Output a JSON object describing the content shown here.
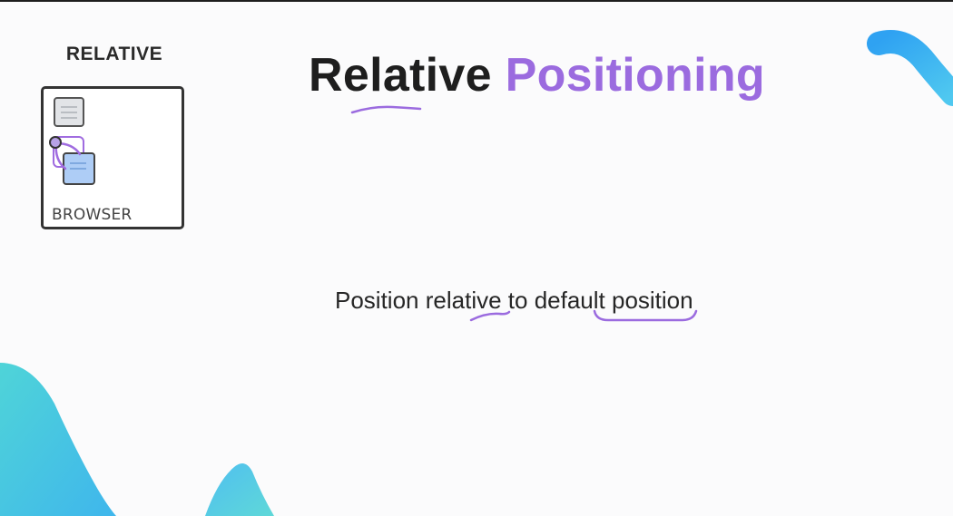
{
  "slide": {
    "diagram_label": "RELATIVE",
    "browser_caption": "BROWSER",
    "title": {
      "word1": "Relative",
      "word2": "Positioning"
    },
    "subtitle": {
      "part1": "Position re",
      "part2": "lat",
      "part3": "ive to ",
      "part4": "default",
      "part5": " position"
    }
  },
  "colors": {
    "accent_purple": "#9b6bdf",
    "wave_blue": "#3fa9f5",
    "wave_teal": "#47d8d4",
    "text_dark": "#1e1e1e",
    "moved_box_fill": "#aecdf6"
  },
  "icons": {
    "static_box": "gray-box-icon",
    "moved_box": "blue-box-icon",
    "ghost_outline": "purple-outline-icon",
    "origin_marker": "circle-marker-icon"
  }
}
